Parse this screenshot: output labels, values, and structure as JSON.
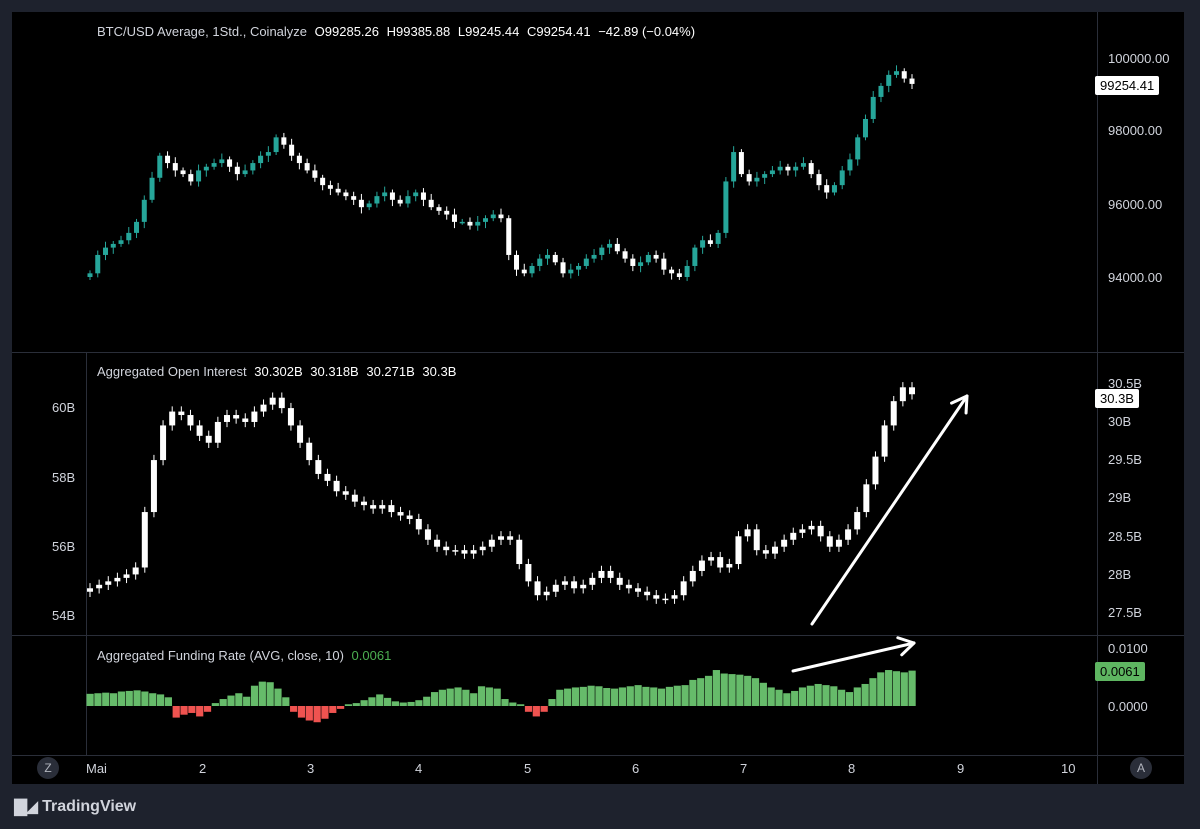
{
  "price_pane": {
    "symbol": "BTC/USD Average, 1Std., Coinalyze",
    "open": "O99285.26",
    "high": "H99385.88",
    "low": "L99245.44",
    "close": "C99254.41",
    "change": "−42.89 (−0.04%)",
    "axis_ticks": [
      "100000.00",
      "98000.00",
      "96000.00",
      "94000.00"
    ],
    "last_price_tag": "99254.41"
  },
  "oi_pane": {
    "title": "Aggregated Open Interest",
    "values": [
      "30.302B",
      "30.318B",
      "30.271B",
      "30.3B"
    ],
    "left_axis_ticks": [
      "60B",
      "58B",
      "56B",
      "54B"
    ],
    "right_axis_ticks": [
      "30.5B",
      "30B",
      "29.5B",
      "29B",
      "28.5B",
      "28B",
      "27.5B"
    ],
    "last_value_tag": "30.3B"
  },
  "funding_pane": {
    "title": "Aggregated Funding Rate (AVG, close, 10)",
    "value": "0.0061",
    "axis_ticks": [
      "0.0100",
      "0.0000"
    ],
    "last_value_tag": "0.0061"
  },
  "time_axis": {
    "labels": [
      "Mai",
      "2",
      "3",
      "4",
      "5",
      "6",
      "7",
      "8",
      "9",
      "10"
    ]
  },
  "buttons": {
    "z_label": "Z",
    "a_label": "A"
  },
  "brand": {
    "name": "TradingView"
  },
  "colors": {
    "up": "#26a69a",
    "down": "#ffffff",
    "funding_pos": "#66bb6a",
    "funding_neg": "#ef5350",
    "background": "#000000"
  },
  "chart_data": {
    "type": "candlestick",
    "price_close_series": [
      94100,
      94600,
      94800,
      94900,
      95000,
      95200,
      95500,
      96100,
      96700,
      97300,
      97100,
      96900,
      96800,
      96600,
      96900,
      97000,
      97100,
      97200,
      97000,
      96800,
      96900,
      97100,
      97300,
      97400,
      97800,
      97600,
      97300,
      97100,
      96900,
      96700,
      96500,
      96400,
      96300,
      96200,
      96100,
      95900,
      96000,
      96200,
      96300,
      96100,
      96000,
      96200,
      96300,
      96100,
      95900,
      95800,
      95700,
      95500,
      95500,
      95400,
      95500,
      95600,
      95700,
      95600,
      94600,
      94200,
      94100,
      94300,
      94500,
      94600,
      94400,
      94100,
      94200,
      94300,
      94500,
      94600,
      94800,
      94900,
      94700,
      94500,
      94300,
      94400,
      94600,
      94500,
      94200,
      94100,
      94000,
      94300,
      94800,
      95000,
      94900,
      95200,
      96600,
      97400,
      96800,
      96600,
      96700,
      96800,
      96900,
      97000,
      96900,
      97000,
      97100,
      96800,
      96500,
      96300,
      96500,
      96900,
      97200,
      97800,
      98300,
      98900,
      99200,
      99500,
      99600,
      99400,
      99254
    ],
    "oi_close_series_B": [
      54.8,
      54.9,
      55.0,
      55.1,
      55.2,
      55.4,
      57.0,
      58.5,
      59.5,
      59.9,
      59.8,
      59.5,
      59.2,
      59.0,
      59.6,
      59.8,
      59.7,
      59.6,
      59.9,
      60.1,
      60.3,
      60.0,
      59.5,
      59.0,
      58.5,
      58.1,
      57.9,
      57.6,
      57.5,
      57.3,
      57.2,
      57.1,
      57.2,
      57.0,
      56.9,
      56.8,
      56.5,
      56.2,
      56.0,
      55.9,
      55.9,
      55.8,
      55.9,
      56.0,
      56.2,
      56.3,
      56.2,
      55.5,
      55.0,
      54.6,
      54.7,
      54.9,
      55.0,
      54.8,
      54.9,
      55.1,
      55.3,
      55.1,
      54.9,
      54.8,
      54.7,
      54.6,
      54.5,
      54.5,
      54.6,
      55.0,
      55.3,
      55.6,
      55.7,
      55.4,
      55.5,
      56.3,
      56.5,
      55.9,
      55.8,
      56.0,
      56.2,
      56.4,
      56.5,
      56.6,
      56.3,
      56.0,
      56.2,
      56.5,
      57.0,
      57.8,
      58.6,
      59.5,
      60.2,
      60.6,
      60.4
    ],
    "funding_series": [
      0.0021,
      0.0022,
      0.0023,
      0.0022,
      0.0025,
      0.0026,
      0.0027,
      0.0025,
      0.0022,
      0.002,
      0.0015,
      -0.002,
      -0.0015,
      -0.0012,
      -0.0018,
      -0.001,
      0.0005,
      0.0012,
      0.0018,
      0.0022,
      0.0016,
      0.0035,
      0.0042,
      0.0041,
      0.003,
      0.0015,
      -0.001,
      -0.002,
      -0.0025,
      -0.0028,
      -0.0022,
      -0.0012,
      -0.0005,
      0.0003,
      0.0005,
      0.001,
      0.0015,
      0.002,
      0.0014,
      0.0008,
      0.0006,
      0.0007,
      0.001,
      0.0016,
      0.0024,
      0.0028,
      0.003,
      0.0032,
      0.0028,
      0.0022,
      0.0034,
      0.0032,
      0.003,
      0.0012,
      0.0006,
      0.0003,
      -0.001,
      -0.0018,
      -0.001,
      0.0012,
      0.0028,
      0.003,
      0.0032,
      0.0033,
      0.0035,
      0.0034,
      0.0031,
      0.003,
      0.0032,
      0.0034,
      0.0036,
      0.0033,
      0.0032,
      0.003,
      0.0033,
      0.0035,
      0.0036,
      0.0045,
      0.0048,
      0.0052,
      0.0062,
      0.0056,
      0.0055,
      0.0054,
      0.0052,
      0.0048,
      0.004,
      0.0032,
      0.0028,
      0.0022,
      0.0026,
      0.0032,
      0.0035,
      0.0038,
      0.0036,
      0.0034,
      0.0028,
      0.0024,
      0.0032,
      0.0038,
      0.0048,
      0.0058,
      0.0062,
      0.006,
      0.0058,
      0.0061
    ]
  }
}
